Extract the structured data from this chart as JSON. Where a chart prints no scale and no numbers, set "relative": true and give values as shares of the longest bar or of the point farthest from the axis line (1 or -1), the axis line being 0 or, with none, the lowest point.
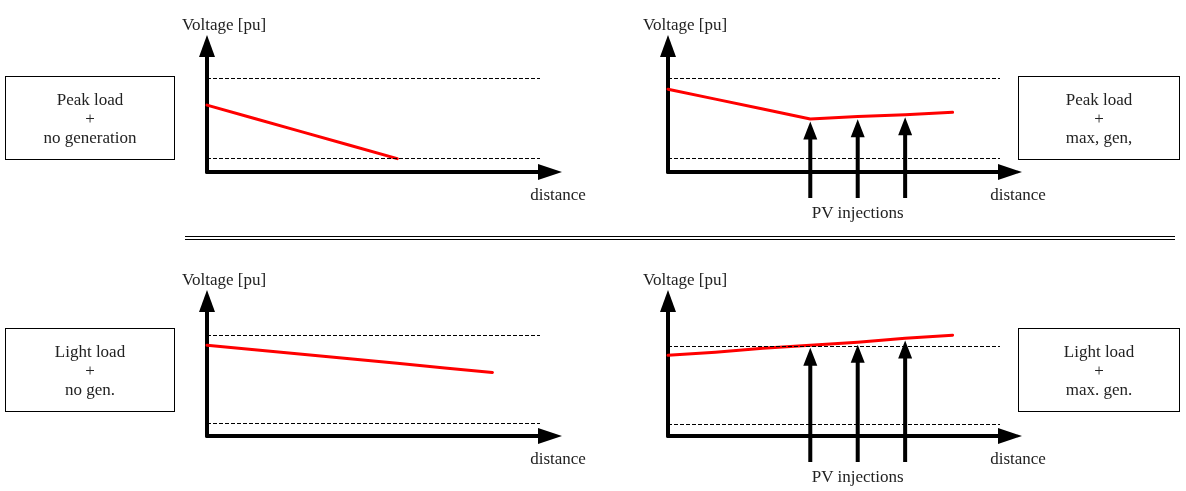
{
  "chart_data": [
    {
      "type": "line",
      "relative": true,
      "xlabel": "distance",
      "ylabel": "Voltage [pu]",
      "categories": [
        null,
        null,
        null,
        null,
        null,
        null,
        null,
        null
      ],
      "series": [
        {
          "color": "#ff0000",
          "values": [
            1,
            0.8,
            0.6,
            0.4,
            0.2,
            null,
            null,
            null
          ]
        }
      ],
      "ref_lines": [
        {
          "axis": "y",
          "value": 1.4,
          "color": "#000000",
          "line_style": "dashed"
        },
        {
          "axis": "y",
          "value": 0.2,
          "color": "#000000",
          "line_style": "dashed"
        }
      ],
      "annotations": [
        "Peak load\n+\nno generation"
      ],
      "marker": "none",
      "line_style": "solid"
    },
    {
      "type": "line",
      "relative": true,
      "xlabel": "distance",
      "ylabel": "Voltage [pu]",
      "categories": [
        null,
        null,
        null,
        null,
        null,
        null,
        null,
        null
      ],
      "series": [
        {
          "color": "#ff0000",
          "values": [
            1,
            0.88,
            0.76,
            0.64,
            0.67,
            0.69,
            0.72,
            null
          ]
        }
      ],
      "ref_lines": [
        {
          "axis": "y",
          "value": 1.13,
          "color": "#000000",
          "line_style": "dashed"
        },
        {
          "axis": "y",
          "value": 0.16,
          "color": "#000000",
          "line_style": "dashed"
        }
      ],
      "annotations": [
        "PV injections",
        "Peak load\n+\nmax, gen,"
      ],
      "marker": "none",
      "line_style": "solid"
    },
    {
      "type": "line",
      "relative": true,
      "xlabel": "distance",
      "ylabel": "Voltage [pu]",
      "categories": [
        null,
        null,
        null,
        null,
        null,
        null,
        null,
        null
      ],
      "series": [
        {
          "color": "#ff0000",
          "values": [
            1,
            0.95,
            0.9,
            0.85,
            0.8,
            0.75,
            0.7,
            null
          ]
        }
      ],
      "ref_lines": [
        {
          "axis": "y",
          "value": 1.11,
          "color": "#000000",
          "line_style": "dashed"
        },
        {
          "axis": "y",
          "value": 0.14,
          "color": "#000000",
          "line_style": "dashed"
        }
      ],
      "annotations": [
        "Light load\n+\nno gen."
      ],
      "marker": "none",
      "line_style": "solid"
    },
    {
      "type": "line",
      "relative": true,
      "xlabel": "distance",
      "ylabel": "Voltage [pu]",
      "categories": [
        null,
        null,
        null,
        null,
        null,
        null,
        null,
        null
      ],
      "series": [
        {
          "color": "#ff0000",
          "values": [
            0.8,
            0.83,
            0.87,
            0.9,
            0.93,
            0.97,
            1,
            null
          ]
        }
      ],
      "ref_lines": [
        {
          "axis": "y",
          "value": 0.89,
          "color": "#000000",
          "line_style": "dashed"
        },
        {
          "axis": "y",
          "value": 0.12,
          "color": "#000000",
          "line_style": "dashed"
        }
      ],
      "annotations": [
        "PV injections",
        "Light load\n+\nmax. gen."
      ],
      "marker": "none",
      "line_style": "solid"
    }
  ]
}
